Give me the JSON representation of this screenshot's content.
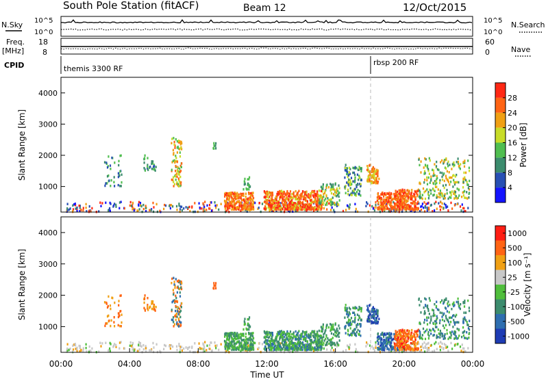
{
  "header": {
    "station": "South Pole Station (fitACF)",
    "beam": "Beam 12",
    "date": "12/Oct/2015"
  },
  "top_panels": {
    "nsky_label": "N.Sky",
    "nsky_ticks": [
      "10^5",
      "10^0"
    ],
    "nsearch_label": "N.Search",
    "nsearch_ticks": [
      "10^5",
      "10^0"
    ],
    "freq_label_1": "Freq.",
    "freq_label_2": "[MHz]",
    "freq_ticks": [
      "18",
      "8"
    ],
    "nave_label": "Nave",
    "nave_ticks": [
      "60",
      "0"
    ],
    "cpid_label": "CPID",
    "cpid_entries": [
      {
        "name": "themis 3300 RF",
        "start_hour": 0
      },
      {
        "name": "rbsp 200 RF",
        "start_hour": 18
      }
    ]
  },
  "chart_data": [
    {
      "type": "heatmap",
      "quantity": "Power",
      "ylabel": "Slant Range [km]",
      "ylim": [
        180,
        4500
      ],
      "yticks": [
        1000,
        2000,
        3000,
        4000
      ],
      "colorbar_label": "Power [dB]",
      "colorbar_ticks": [
        "4",
        "8",
        "12",
        "16",
        "20",
        "24",
        "28"
      ],
      "colors": [
        "#1414ff",
        "#2850b4",
        "#3c8c6e",
        "#50be50",
        "#c8dc28",
        "#f0a014",
        "#ff6414",
        "#ff2814"
      ]
    },
    {
      "type": "heatmap",
      "quantity": "Velocity",
      "ylabel": "Slant Range [km]",
      "ylim": [
        180,
        4500
      ],
      "yticks": [
        1000,
        2000,
        3000,
        4000
      ],
      "colorbar_label": "Velocity [m s⁻¹]",
      "colorbar_ticks": [
        "1000",
        "500",
        "100",
        "25",
        "-25",
        "-100",
        "-500",
        "-1000"
      ],
      "colors": [
        "#1e3cb4",
        "#2e6eb0",
        "#3c8c6e",
        "#50be3c",
        "#c8c8c8",
        "#f0a014",
        "#ff6414",
        "#ff1e14"
      ]
    }
  ],
  "x_axis": {
    "label": "Time UT",
    "ticks": [
      "00:00",
      "04:00",
      "08:00",
      "12:00",
      "16:00",
      "20:00",
      "00:00"
    ],
    "xlim_hours": [
      0,
      24
    ]
  }
}
